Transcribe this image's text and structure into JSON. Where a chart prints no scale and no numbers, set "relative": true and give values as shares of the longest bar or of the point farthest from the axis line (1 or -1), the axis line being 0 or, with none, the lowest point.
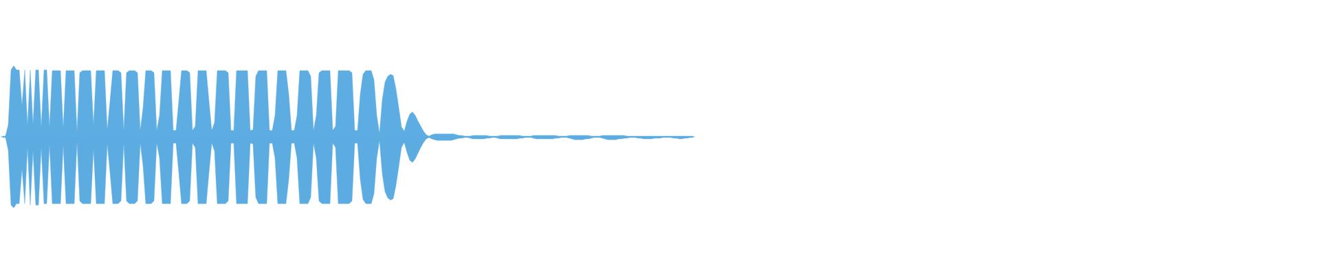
{
  "chart_data": {
    "type": "area",
    "relative": true,
    "categories": [
      null,
      null,
      null,
      null,
      null,
      null,
      null,
      null,
      null,
      null,
      null,
      null,
      null,
      null,
      null,
      null,
      null,
      null,
      null,
      null,
      null,
      null,
      null,
      null,
      null,
      null,
      null,
      null,
      null,
      null,
      null,
      null,
      null,
      null,
      null,
      null,
      null,
      null,
      null,
      null,
      null,
      null,
      null,
      null,
      null,
      null,
      null,
      null,
      null,
      null,
      null,
      null,
      null,
      null,
      null,
      null,
      null,
      null,
      null,
      null,
      null,
      null,
      null,
      null,
      null,
      null,
      null,
      null,
      null,
      null,
      null,
      null,
      null,
      null,
      null,
      null,
      null,
      null,
      null,
      null,
      null,
      null,
      null,
      null,
      null,
      null,
      null,
      null,
      null,
      null,
      null,
      null,
      null,
      null,
      null,
      null,
      null,
      null,
      null,
      null,
      null,
      null,
      null,
      null,
      null,
      null,
      null,
      null,
      null,
      null,
      null,
      null,
      null,
      null,
      null,
      null,
      null,
      null,
      null,
      null,
      null,
      null,
      null,
      null,
      null,
      null,
      null,
      null,
      null,
      null,
      null,
      null,
      null,
      null,
      null,
      null,
      null,
      null,
      null,
      null,
      null,
      null,
      null,
      null,
      null,
      null,
      null,
      null,
      null,
      null,
      null,
      null,
      null,
      null,
      null,
      null,
      null,
      null,
      null,
      null,
      null,
      null,
      null,
      null,
      null,
      null,
      null,
      null,
      null,
      null,
      null,
      null,
      null,
      null,
      null,
      null,
      null,
      null,
      null,
      null,
      null,
      null,
      null,
      null,
      null,
      null,
      null,
      null,
      null,
      null,
      null,
      null,
      null,
      null,
      null,
      null,
      null,
      null,
      null,
      null,
      null,
      null,
      null,
      null,
      null,
      null,
      null,
      null,
      null,
      null,
      null,
      null,
      null,
      null,
      null,
      null,
      null,
      null,
      null,
      null,
      null,
      null,
      null,
      null,
      null,
      null,
      null,
      null,
      null,
      null,
      null,
      null,
      null,
      null,
      null,
      null,
      null,
      null,
      null,
      null,
      null,
      null,
      null,
      null,
      null,
      null,
      null,
      null,
      null,
      null,
      null,
      null
    ],
    "series": [
      {
        "color": "#5dade2",
        "values": [
          0.01,
          0.01,
          0.17,
          0.94,
          1.0,
          0.94,
          0.94,
          0.44,
          0.94,
          0.16,
          0.94,
          0.17,
          0.94,
          0.94,
          0.13,
          0.94,
          0.94,
          0.14,
          0.93,
          0.93,
          0.93,
          0.93,
          0.12,
          0.93,
          0.93,
          0.93,
          0.93,
          0.07,
          0.9,
          0.93,
          0.93,
          0.93,
          0.93,
          0.17,
          0.93,
          0.93,
          0.93,
          0.93,
          0.1,
          0.5,
          0.93,
          0.93,
          0.93,
          0.9,
          0.09,
          0.9,
          0.93,
          0.93,
          0.93,
          0.9,
          0.09,
          0.4,
          0.93,
          0.93,
          0.93,
          0.9,
          0.09,
          0.3,
          0.93,
          0.93,
          0.93,
          0.93,
          0.09,
          0.09,
          0.5,
          0.93,
          0.93,
          0.93,
          0.9,
          0.09,
          0.15,
          0.93,
          0.93,
          0.93,
          0.93,
          0.5,
          0.09,
          0.2,
          0.93,
          0.93,
          0.93,
          0.93,
          0.9,
          0.09,
          0.09,
          0.93,
          0.93,
          0.93,
          0.93,
          0.93,
          0.09,
          0.1,
          0.85,
          0.93,
          0.93,
          0.93,
          0.93,
          0.09,
          0.09,
          0.3,
          0.93,
          0.93,
          0.93,
          0.93,
          0.6,
          0.09,
          0.09,
          0.3,
          0.93,
          0.93,
          0.93,
          0.93,
          0.85,
          0.09,
          0.3,
          0.9,
          0.93,
          0.93,
          0.93,
          0.93,
          0.09,
          0.15,
          0.93,
          0.93,
          0.93,
          0.93,
          0.93,
          0.9,
          0.09,
          0.09,
          0.6,
          0.88,
          0.93,
          0.93,
          0.93,
          0.8,
          0.3,
          0.05,
          0.52,
          0.77,
          0.85,
          0.88,
          0.86,
          0.67,
          0.41,
          0.14,
          0.08,
          0.22,
          0.32,
          0.35,
          0.3,
          0.22,
          0.15,
          0.08,
          0.03,
          0.01,
          0.03,
          0.04,
          0.04,
          0.04,
          0.04,
          0.04,
          0.04,
          0.04,
          0.04,
          0.03,
          0.02,
          0.02,
          0.01,
          0.01,
          0.01,
          0.02,
          0.02,
          0.02,
          0.02,
          0.02,
          0.02,
          0.01,
          0.01,
          0.01,
          0.01,
          0.02,
          0.02,
          0.02,
          0.02,
          0.02,
          0.02,
          0.02,
          0.02,
          0.01,
          0.01,
          0.01,
          0.01,
          0.02,
          0.02,
          0.02,
          0.02,
          0.02,
          0.02,
          0.02,
          0.02,
          0.02,
          0.01,
          0.01,
          0.01,
          0.01,
          0.02,
          0.02,
          0.02,
          0.02,
          0.02,
          0.02,
          0.02,
          0.02,
          0.01,
          0.01,
          0.01,
          0.01,
          0.02,
          0.02,
          0.02,
          0.02,
          0.02,
          0.02,
          0.02,
          0.02,
          0.02,
          0.01,
          0.01,
          0.01,
          0.01,
          0.01,
          0.01,
          0.01,
          0.01,
          0.01,
          0.01,
          0.01,
          0.01,
          0.01,
          0.01,
          0.01,
          0.01,
          0.01,
          0.01,
          0.01,
          0.01,
          0.01,
          0.01,
          0.01,
          0.01,
          0.01
        ]
      },
      {
        "color": "#5cace1",
        "values": [
          -0.01,
          -0.01,
          -0.19,
          -0.96,
          -1.0,
          -0.94,
          -0.94,
          -0.45,
          -0.94,
          -0.15,
          -0.96,
          -0.2,
          -0.96,
          -0.96,
          -0.15,
          -0.94,
          -0.94,
          -0.11,
          -0.94,
          -0.94,
          -0.94,
          -0.94,
          -0.12,
          -0.94,
          -0.94,
          -0.94,
          -0.94,
          -0.07,
          -0.9,
          -0.94,
          -0.94,
          -0.94,
          -0.94,
          -0.17,
          -0.94,
          -0.94,
          -0.94,
          -0.94,
          -0.1,
          -0.5,
          -0.94,
          -0.94,
          -0.94,
          -0.9,
          -0.09,
          -0.9,
          -0.94,
          -0.94,
          -0.94,
          -0.9,
          -0.09,
          -0.4,
          -0.94,
          -0.94,
          -0.94,
          -0.9,
          -0.09,
          -0.3,
          -0.94,
          -0.94,
          -0.94,
          -0.94,
          -0.09,
          -0.09,
          -0.5,
          -0.94,
          -0.94,
          -0.94,
          -0.9,
          -0.09,
          -0.15,
          -0.94,
          -0.94,
          -0.94,
          -0.94,
          -0.5,
          -0.09,
          -0.2,
          -0.94,
          -0.94,
          -0.94,
          -0.94,
          -0.9,
          -0.09,
          -0.09,
          -0.94,
          -0.94,
          -0.94,
          -0.94,
          -0.94,
          -0.09,
          -0.1,
          -0.85,
          -0.94,
          -0.94,
          -0.94,
          -0.94,
          -0.09,
          -0.09,
          -0.3,
          -0.94,
          -0.94,
          -0.94,
          -0.94,
          -0.6,
          -0.09,
          -0.09,
          -0.3,
          -0.94,
          -0.94,
          -0.94,
          -0.94,
          -0.85,
          -0.09,
          -0.3,
          -0.9,
          -0.94,
          -0.94,
          -0.94,
          -0.94,
          -0.09,
          -0.15,
          -0.94,
          -0.94,
          -0.94,
          -0.94,
          -0.94,
          -0.9,
          -0.09,
          -0.09,
          -0.6,
          -0.88,
          -0.94,
          -0.94,
          -0.94,
          -0.8,
          -0.3,
          -0.05,
          -0.52,
          -0.77,
          -0.86,
          -0.89,
          -0.87,
          -0.68,
          -0.42,
          -0.15,
          -0.08,
          -0.22,
          -0.33,
          -0.36,
          -0.31,
          -0.23,
          -0.15,
          -0.08,
          -0.03,
          -0.01,
          -0.03,
          -0.04,
          -0.05,
          -0.05,
          -0.05,
          -0.05,
          -0.05,
          -0.05,
          -0.04,
          -0.03,
          -0.02,
          -0.02,
          -0.01,
          -0.01,
          -0.02,
          -0.03,
          -0.03,
          -0.03,
          -0.03,
          -0.03,
          -0.02,
          -0.02,
          -0.01,
          -0.01,
          -0.02,
          -0.03,
          -0.03,
          -0.03,
          -0.03,
          -0.03,
          -0.03,
          -0.03,
          -0.02,
          -0.02,
          -0.01,
          -0.01,
          -0.01,
          -0.02,
          -0.03,
          -0.03,
          -0.03,
          -0.03,
          -0.03,
          -0.03,
          -0.03,
          -0.02,
          -0.02,
          -0.01,
          -0.01,
          -0.01,
          -0.02,
          -0.03,
          -0.04,
          -0.04,
          -0.04,
          -0.04,
          -0.03,
          -0.03,
          -0.02,
          -0.01,
          -0.01,
          -0.01,
          -0.02,
          -0.03,
          -0.04,
          -0.04,
          -0.04,
          -0.04,
          -0.03,
          -0.03,
          -0.02,
          -0.02,
          -0.01,
          -0.01,
          -0.01,
          -0.02,
          -0.02,
          -0.03,
          -0.03,
          -0.03,
          -0.03,
          -0.02,
          -0.02,
          -0.02,
          -0.01,
          -0.01,
          -0.01,
          -0.01,
          -0.02,
          -0.02,
          -0.03,
          -0.03,
          -0.02,
          -0.02,
          -0.01,
          -0.01
        ]
      }
    ]
  }
}
